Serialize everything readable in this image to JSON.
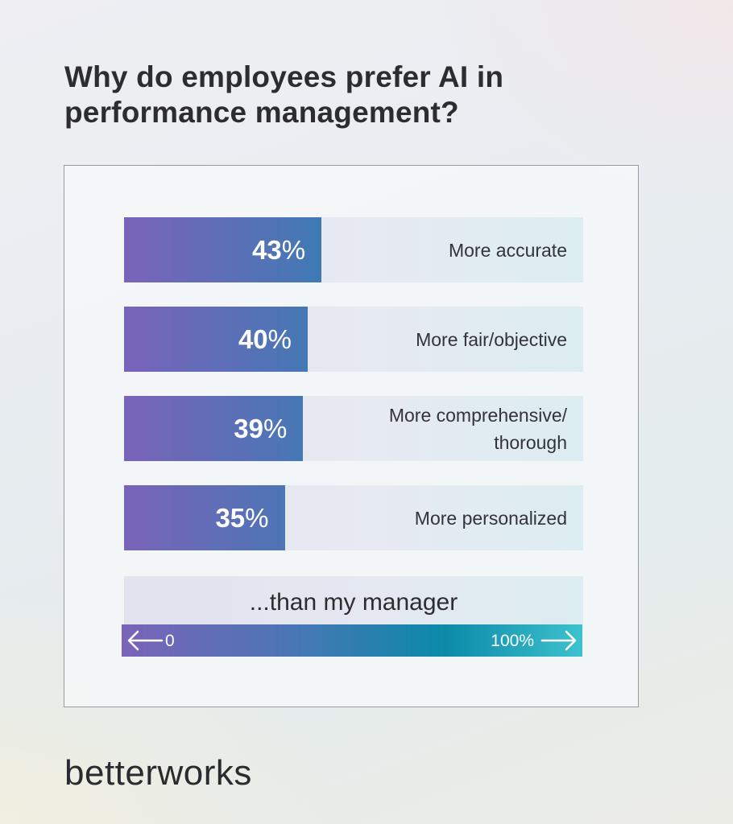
{
  "title": "Why do employees prefer AI in performance management?",
  "chart_data": {
    "type": "bar",
    "orientation": "horizontal",
    "title": "Why do employees prefer AI in performance management?",
    "categories": [
      "More accurate",
      "More fair/objective",
      "More comprehensive/ thorough",
      "More personalized"
    ],
    "values": [
      43,
      40,
      39,
      35
    ],
    "value_labels": [
      "43%",
      "40%",
      "39%",
      "35%"
    ],
    "xlim": [
      0,
      100
    ],
    "footnote": "...than my manager",
    "scale_min_label": "0",
    "scale_max_label": "100%",
    "colors": {
      "gradient_start": "#7a63b8",
      "gradient_mid": "#0b8aa8",
      "gradient_end": "#3dc2cf",
      "track": "#e4e6f0"
    }
  },
  "brand": "betterworks"
}
